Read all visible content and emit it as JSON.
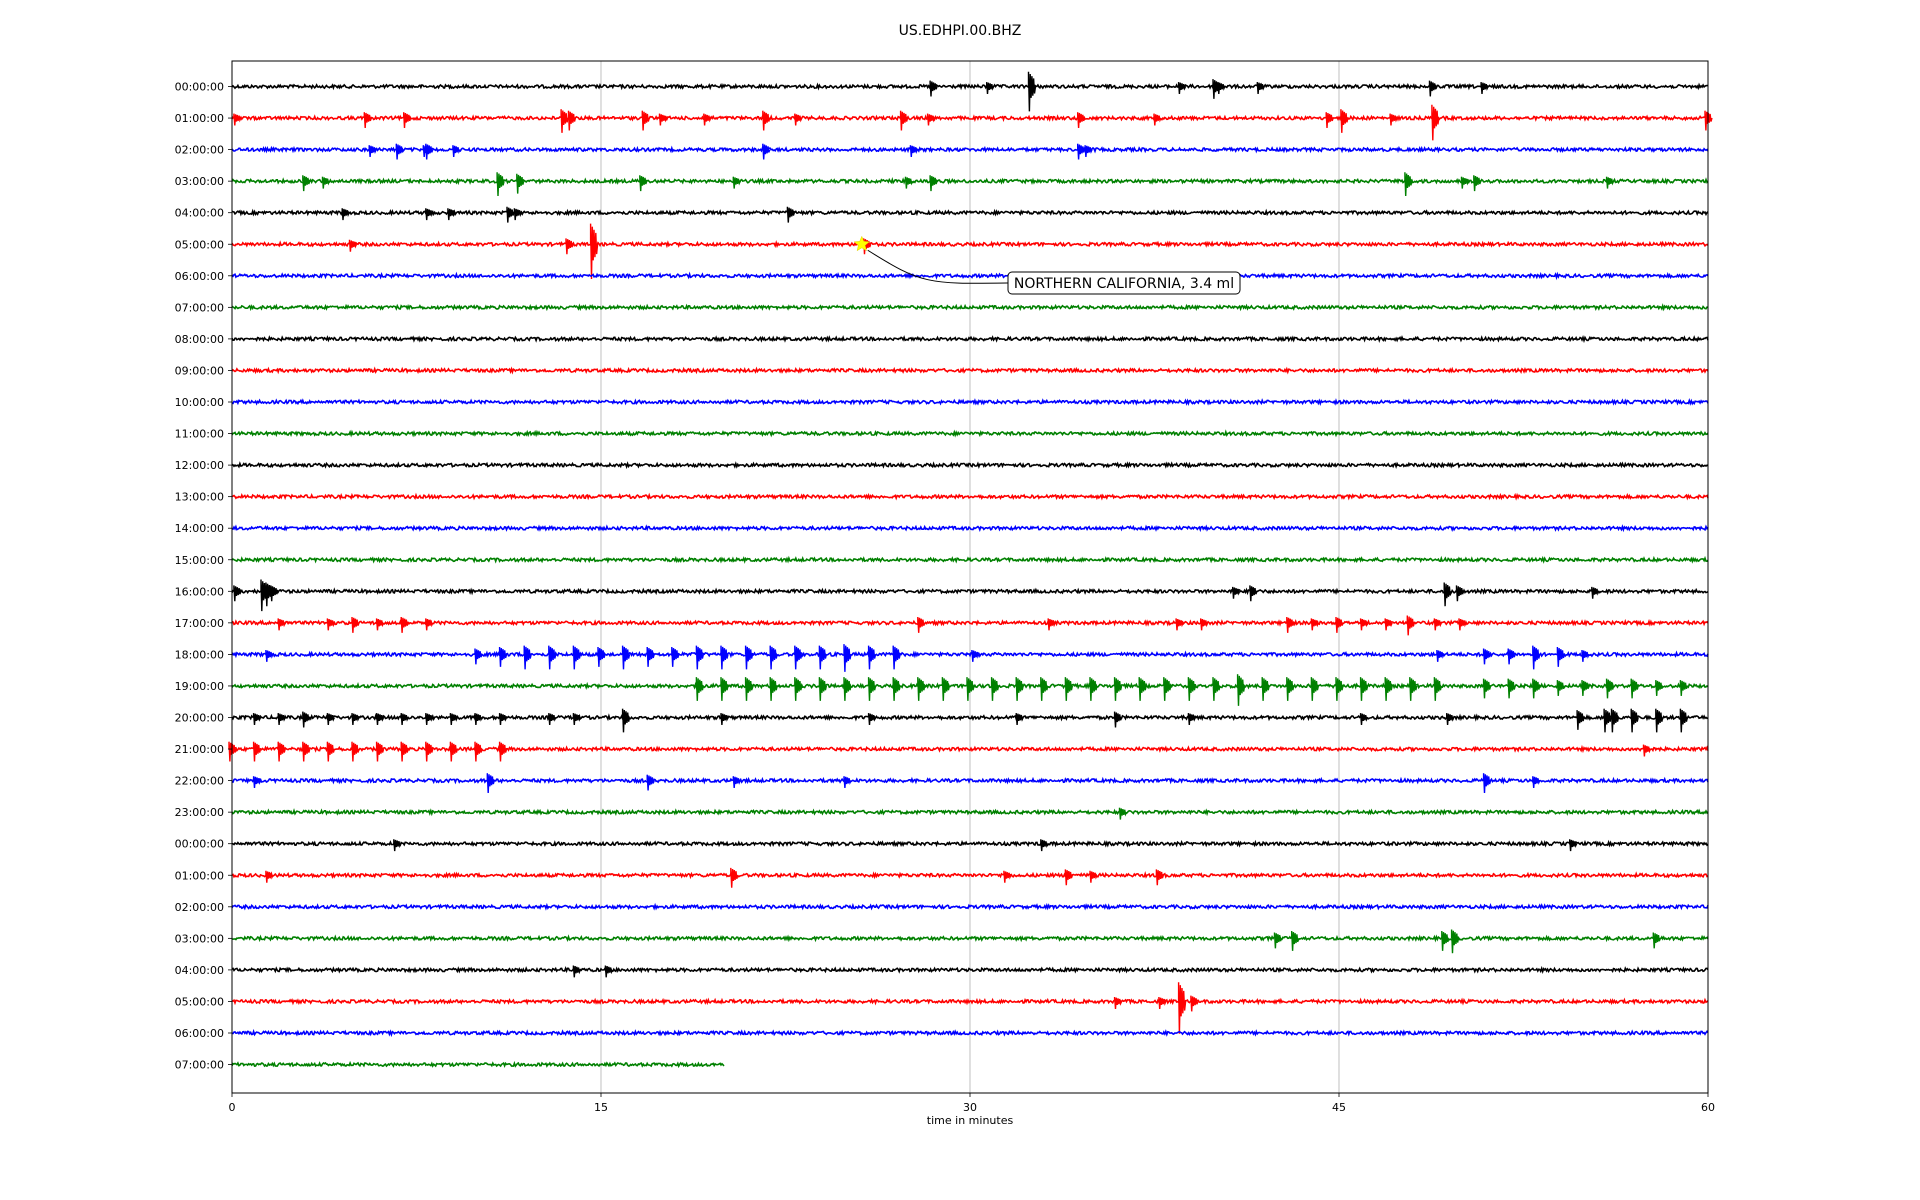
{
  "chart_data": {
    "type": "line",
    "title": "US.EDHPI.00.BHZ",
    "xlabel": "time in minutes",
    "xlim": [
      0,
      60
    ],
    "xticks": [
      "0",
      "15",
      "30",
      "45",
      "60"
    ],
    "xtick_values": [
      0,
      15,
      30,
      45,
      60
    ],
    "grid_vertical": true,
    "row_labels": [
      "00:00:00",
      "01:00:00",
      "02:00:00",
      "03:00:00",
      "04:00:00",
      "05:00:00",
      "06:00:00",
      "07:00:00",
      "08:00:00",
      "09:00:00",
      "10:00:00",
      "11:00:00",
      "12:00:00",
      "13:00:00",
      "14:00:00",
      "15:00:00",
      "16:00:00",
      "17:00:00",
      "18:00:00",
      "19:00:00",
      "20:00:00",
      "21:00:00",
      "22:00:00",
      "23:00:00",
      "00:00:00",
      "01:00:00",
      "02:00:00",
      "03:00:00",
      "04:00:00",
      "05:00:00",
      "06:00:00",
      "07:00:00"
    ],
    "color_cycle": [
      "#000000",
      "#ff0000",
      "#0000ff",
      "#008000"
    ],
    "last_row_end_minute": 20,
    "rows": [
      {
        "spikes": [
          [
            28.5,
            0.4
          ],
          [
            30.8,
            0.3
          ],
          [
            32.5,
            1.0
          ],
          [
            38.6,
            0.3
          ],
          [
            40,
            0.5
          ],
          [
            40.2,
            0.3
          ],
          [
            41.8,
            0.3
          ],
          [
            48.8,
            0.4
          ],
          [
            50.9,
            0.3
          ]
        ]
      },
      {
        "spikes": [
          [
            0.2,
            0.3
          ],
          [
            5.5,
            0.4
          ],
          [
            7.1,
            0.4
          ],
          [
            13.5,
            0.6
          ],
          [
            13.8,
            0.5
          ],
          [
            16.8,
            0.5
          ],
          [
            17.5,
            0.3
          ],
          [
            19.3,
            0.3
          ],
          [
            21.7,
            0.5
          ],
          [
            23,
            0.3
          ],
          [
            27.3,
            0.5
          ],
          [
            28.4,
            0.3
          ],
          [
            34.5,
            0.4
          ],
          [
            37.6,
            0.3
          ],
          [
            44.6,
            0.4
          ],
          [
            45.2,
            0.6
          ],
          [
            47.2,
            0.3
          ],
          [
            48.9,
            0.9
          ],
          [
            60,
            0.5
          ]
        ]
      },
      {
        "spikes": [
          [
            5.7,
            0.3
          ],
          [
            6.8,
            0.4
          ],
          [
            7.9,
            0.3
          ],
          [
            8,
            0.4
          ],
          [
            9.1,
            0.3
          ],
          [
            21.7,
            0.4
          ],
          [
            27.7,
            0.3
          ],
          [
            34.5,
            0.4
          ],
          [
            34.8,
            0.3
          ]
        ]
      },
      {
        "spikes": [
          [
            3,
            0.4
          ],
          [
            3.8,
            0.3
          ],
          [
            10.9,
            0.6
          ],
          [
            11.7,
            0.5
          ],
          [
            16.7,
            0.4
          ],
          [
            20.5,
            0.3
          ],
          [
            27.5,
            0.3
          ],
          [
            28.5,
            0.4
          ],
          [
            47.8,
            0.6
          ],
          [
            50.1,
            0.3
          ],
          [
            50.6,
            0.4
          ],
          [
            56,
            0.3
          ]
        ]
      },
      {
        "spikes": [
          [
            4.6,
            0.3
          ],
          [
            8,
            0.3
          ],
          [
            8.9,
            0.3
          ],
          [
            11.3,
            0.4
          ],
          [
            11.6,
            0.3
          ],
          [
            22.7,
            0.4
          ]
        ]
      },
      {
        "spikes": [
          [
            4.9,
            0.3
          ],
          [
            13.7,
            0.4
          ],
          [
            14.7,
            1.4
          ],
          [
            25.8,
            0.4
          ]
        ]
      },
      {
        "spikes": []
      },
      {
        "spikes": []
      },
      {
        "spikes": []
      },
      {
        "spikes": []
      },
      {
        "spikes": []
      },
      {
        "spikes": []
      },
      {
        "spikes": []
      },
      {
        "spikes": []
      },
      {
        "spikes": []
      },
      {
        "spikes": []
      },
      {
        "spikes": [
          [
            0.2,
            0.4
          ],
          [
            1.3,
            0.8
          ],
          [
            1.5,
            0.6
          ],
          [
            1.7,
            0.4
          ],
          [
            40.8,
            0.3
          ],
          [
            41.5,
            0.4
          ],
          [
            49.4,
            0.6
          ],
          [
            49.9,
            0.4
          ],
          [
            55.4,
            0.3
          ]
        ]
      },
      {
        "spikes": [
          [
            2,
            0.3
          ],
          [
            4,
            0.3
          ],
          [
            5,
            0.4
          ],
          [
            6,
            0.3
          ],
          [
            7,
            0.4
          ],
          [
            8,
            0.3
          ],
          [
            28,
            0.4
          ],
          [
            33.3,
            0.3
          ],
          [
            38.5,
            0.3
          ],
          [
            39.5,
            0.3
          ],
          [
            43,
            0.4
          ],
          [
            44,
            0.3
          ],
          [
            45,
            0.4
          ],
          [
            46,
            0.3
          ],
          [
            47,
            0.3
          ],
          [
            47.9,
            0.5
          ],
          [
            49,
            0.3
          ],
          [
            50,
            0.3
          ]
        ]
      },
      {
        "spikes": [
          [
            1.5,
            0.3
          ],
          [
            10,
            0.4
          ],
          [
            11,
            0.5
          ],
          [
            12,
            0.6
          ],
          [
            13,
            0.6
          ],
          [
            14,
            0.6
          ],
          [
            15,
            0.5
          ],
          [
            16,
            0.6
          ],
          [
            17,
            0.5
          ],
          [
            18,
            0.5
          ],
          [
            19,
            0.6
          ],
          [
            20,
            0.6
          ],
          [
            21,
            0.6
          ],
          [
            22,
            0.6
          ],
          [
            23,
            0.6
          ],
          [
            24,
            0.6
          ],
          [
            25,
            0.7
          ],
          [
            26,
            0.6
          ],
          [
            27,
            0.6
          ],
          [
            30.2,
            0.3
          ],
          [
            49.1,
            0.3
          ],
          [
            51,
            0.4
          ],
          [
            52,
            0.4
          ],
          [
            53,
            0.6
          ],
          [
            54,
            0.5
          ],
          [
            55,
            0.3
          ]
        ]
      },
      {
        "spikes": [
          [
            19,
            0.6
          ],
          [
            20,
            0.6
          ],
          [
            21,
            0.6
          ],
          [
            22,
            0.6
          ],
          [
            23,
            0.6
          ],
          [
            24,
            0.6
          ],
          [
            25,
            0.6
          ],
          [
            26,
            0.6
          ],
          [
            27,
            0.6
          ],
          [
            28,
            0.6
          ],
          [
            29,
            0.6
          ],
          [
            30,
            0.6
          ],
          [
            31,
            0.6
          ],
          [
            32,
            0.6
          ],
          [
            33,
            0.6
          ],
          [
            34,
            0.6
          ],
          [
            35,
            0.6
          ],
          [
            36,
            0.6
          ],
          [
            37,
            0.6
          ],
          [
            38,
            0.6
          ],
          [
            39,
            0.6
          ],
          [
            40,
            0.6
          ],
          [
            41,
            0.8
          ],
          [
            42,
            0.6
          ],
          [
            43,
            0.6
          ],
          [
            44,
            0.6
          ],
          [
            45,
            0.6
          ],
          [
            46,
            0.6
          ],
          [
            47,
            0.6
          ],
          [
            48,
            0.6
          ],
          [
            49,
            0.6
          ],
          [
            51,
            0.5
          ],
          [
            52,
            0.5
          ],
          [
            53,
            0.5
          ],
          [
            54,
            0.4
          ],
          [
            55,
            0.4
          ],
          [
            56,
            0.5
          ],
          [
            57,
            0.5
          ],
          [
            58,
            0.4
          ],
          [
            59,
            0.4
          ]
        ]
      },
      {
        "spikes": [
          [
            1,
            0.3
          ],
          [
            2,
            0.3
          ],
          [
            3,
            0.4
          ],
          [
            4,
            0.3
          ],
          [
            5,
            0.3
          ],
          [
            6,
            0.3
          ],
          [
            7,
            0.3
          ],
          [
            8,
            0.3
          ],
          [
            9,
            0.3
          ],
          [
            10,
            0.3
          ],
          [
            11,
            0.3
          ],
          [
            13,
            0.3
          ],
          [
            14,
            0.3
          ],
          [
            16,
            0.6
          ],
          [
            20,
            0.3
          ],
          [
            26,
            0.3
          ],
          [
            32,
            0.3
          ],
          [
            36,
            0.4
          ],
          [
            39,
            0.3
          ],
          [
            46,
            0.3
          ],
          [
            49.5,
            0.3
          ],
          [
            54.8,
            0.5
          ],
          [
            55.9,
            0.6
          ],
          [
            56.2,
            0.6
          ],
          [
            57,
            0.6
          ],
          [
            58,
            0.6
          ],
          [
            59,
            0.6
          ]
        ]
      },
      {
        "spikes": [
          [
            0,
            0.5
          ],
          [
            1,
            0.5
          ],
          [
            2,
            0.5
          ],
          [
            3,
            0.5
          ],
          [
            4,
            0.5
          ],
          [
            5,
            0.5
          ],
          [
            6,
            0.5
          ],
          [
            7,
            0.5
          ],
          [
            8,
            0.5
          ],
          [
            9,
            0.5
          ],
          [
            10,
            0.5
          ],
          [
            11,
            0.5
          ],
          [
            57.5,
            0.3
          ]
        ]
      },
      {
        "spikes": [
          [
            1,
            0.3
          ],
          [
            10.5,
            0.5
          ],
          [
            17,
            0.4
          ],
          [
            20.5,
            0.3
          ],
          [
            25,
            0.3
          ],
          [
            51,
            0.5
          ],
          [
            53,
            0.3
          ]
        ]
      },
      {
        "spikes": [
          [
            36.2,
            0.3
          ]
        ]
      },
      {
        "spikes": [
          [
            6.7,
            0.3
          ],
          [
            33,
            0.3
          ],
          [
            54.5,
            0.3
          ]
        ]
      },
      {
        "spikes": [
          [
            1.5,
            0.3
          ],
          [
            20.4,
            0.5
          ],
          [
            31.5,
            0.3
          ],
          [
            34,
            0.4
          ],
          [
            35,
            0.3
          ],
          [
            37.7,
            0.4
          ]
        ]
      },
      {
        "spikes": []
      },
      {
        "spikes": [
          [
            42.5,
            0.4
          ],
          [
            43.2,
            0.5
          ],
          [
            49.3,
            0.5
          ],
          [
            49.7,
            0.6
          ],
          [
            57.9,
            0.4
          ]
        ]
      },
      {
        "spikes": [
          [
            14,
            0.3
          ],
          [
            15.3,
            0.3
          ]
        ]
      },
      {
        "spikes": [
          [
            36,
            0.3
          ],
          [
            37.8,
            0.3
          ],
          [
            38.6,
            1.3
          ],
          [
            39.1,
            0.4
          ]
        ]
      },
      {
        "spikes": []
      },
      {
        "spikes": []
      }
    ],
    "annotation": {
      "text": "NORTHERN CALIFORNIA, 3.4 ml",
      "row_index": 5,
      "minute": 25.6,
      "marker": "yellow-star"
    }
  }
}
